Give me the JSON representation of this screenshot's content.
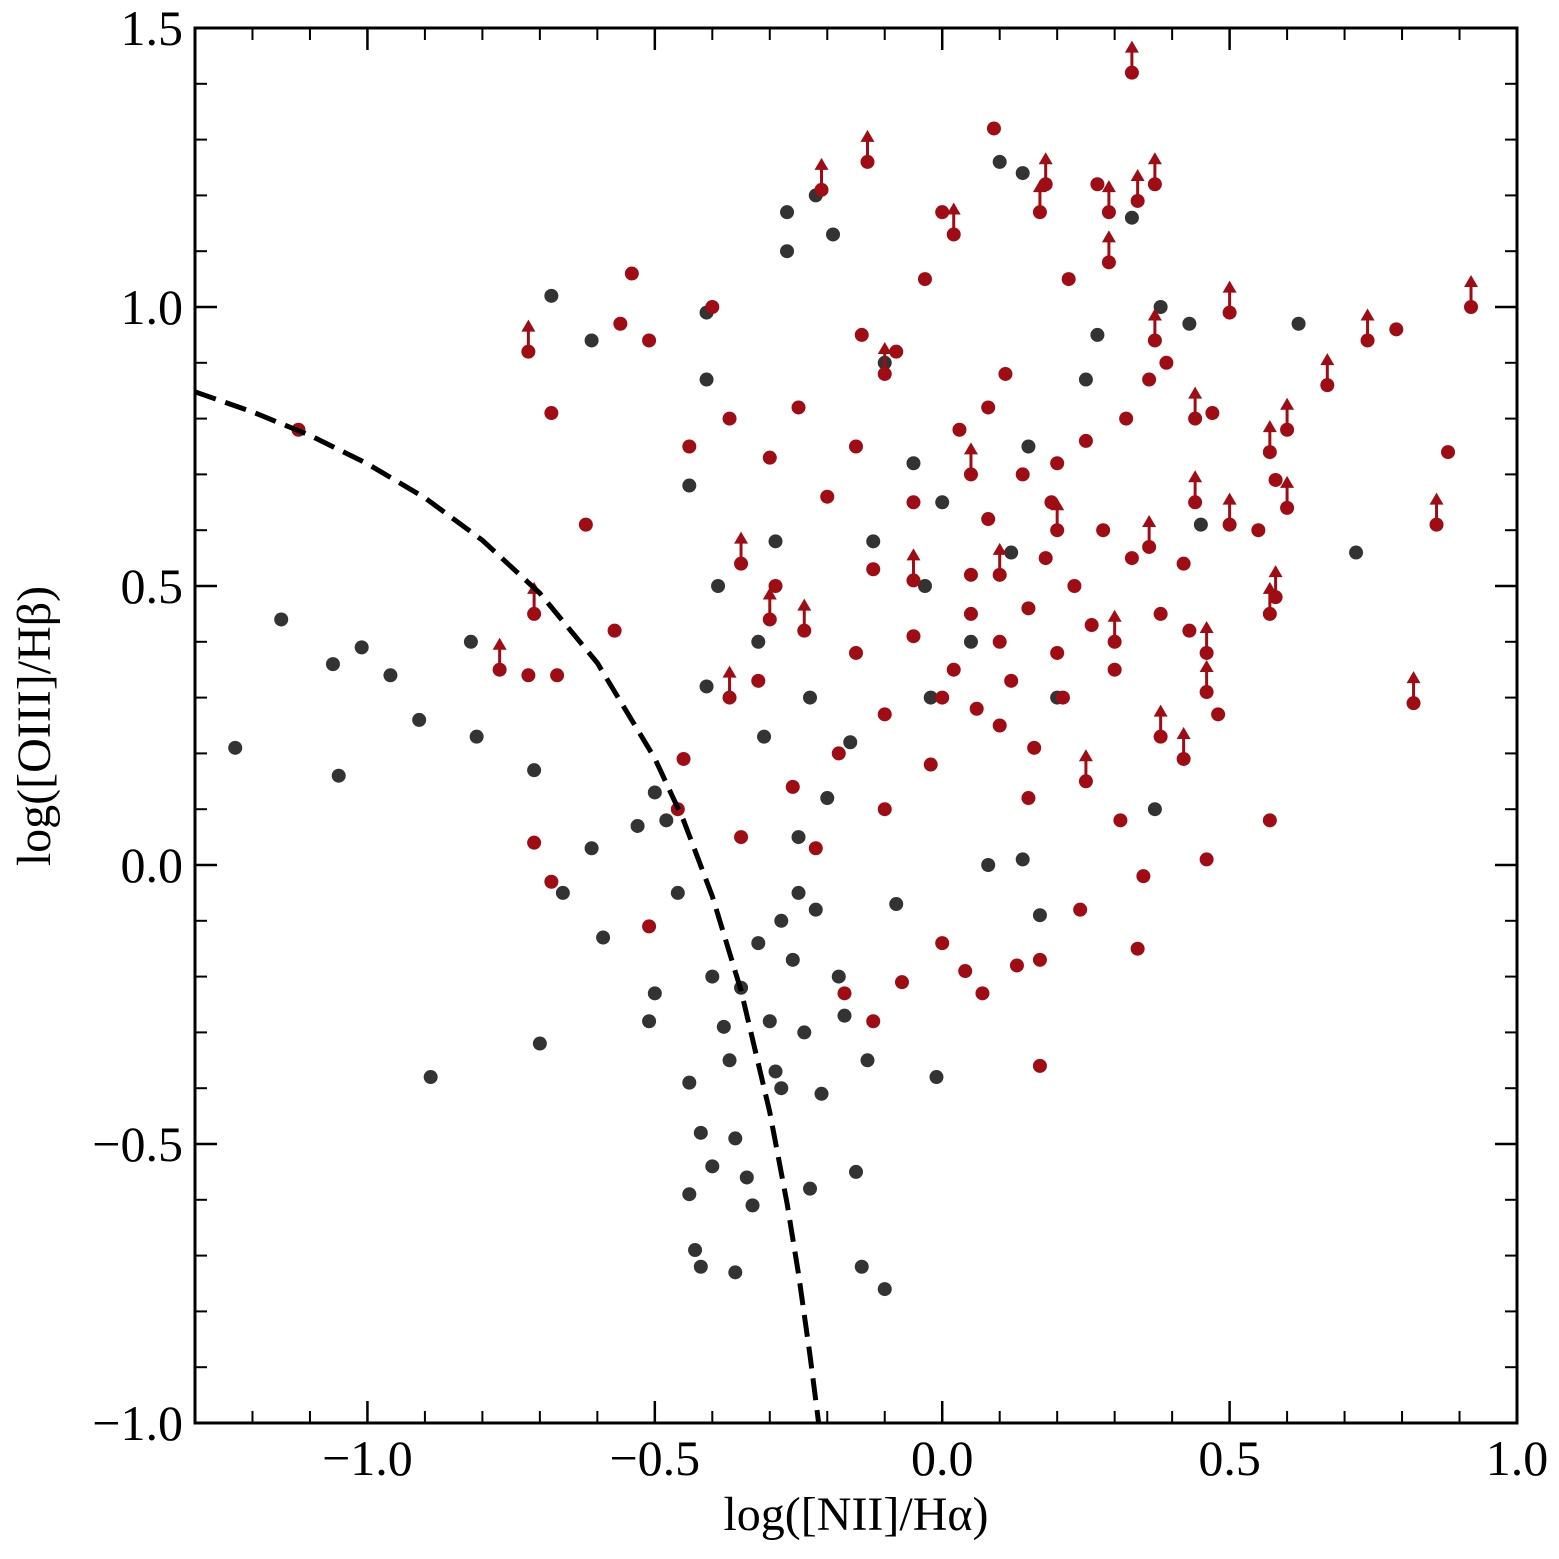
{
  "chart_data": {
    "type": "scatter",
    "x_label": "log([NII]/Hα)",
    "y_label": "log([OIII]/Hβ)",
    "xlim": [
      -1.3,
      1.0
    ],
    "ylim": [
      -1.0,
      1.5
    ],
    "xticks": [
      {
        "value": -1.0,
        "label": "−1.0"
      },
      {
        "value": -0.5,
        "label": "−0.5"
      },
      {
        "value": 0.0,
        "label": "0.0"
      },
      {
        "value": 0.5,
        "label": "0.5"
      },
      {
        "value": 1.0,
        "label": "1.0"
      }
    ],
    "yticks": [
      {
        "value": -1.0,
        "label": "−1.0"
      },
      {
        "value": -0.5,
        "label": "−0.5"
      },
      {
        "value": 0.0,
        "label": "0.0"
      },
      {
        "value": 0.5,
        "label": "0.5"
      },
      {
        "value": 1.0,
        "label": "1.0"
      },
      {
        "value": 1.5,
        "label": "1.5"
      }
    ],
    "xminorticks": [
      -1.2,
      -1.1,
      -0.9,
      -0.8,
      -0.7,
      -0.6,
      -0.4,
      -0.3,
      -0.2,
      -0.1,
      0.1,
      0.2,
      0.3,
      0.4,
      0.6,
      0.7,
      0.8,
      0.9
    ],
    "yminorticks": [
      -0.9,
      -0.8,
      -0.7,
      -0.6,
      -0.4,
      -0.3,
      -0.2,
      -0.1,
      0.1,
      0.2,
      0.3,
      0.4,
      0.6,
      0.7,
      0.8,
      0.9,
      1.1,
      1.2,
      1.3,
      1.4
    ],
    "series": [
      {
        "color": "#333333",
        "marker": "circle",
        "x": [
          -1.23,
          -1.15,
          -1.06,
          -1.01,
          -0.96,
          -0.91,
          -1.05,
          -0.89,
          -0.82,
          -0.81,
          -0.71,
          -0.7,
          -0.68,
          -0.61,
          -0.61,
          -0.59,
          -0.66,
          -0.53,
          -0.51,
          -0.5,
          -0.5,
          -0.48,
          -0.46,
          -0.44,
          -0.44,
          -0.44,
          -0.43,
          -0.42,
          -0.42,
          -0.41,
          -0.41,
          -0.41,
          -0.4,
          -0.4,
          -0.39,
          -0.38,
          -0.37,
          -0.36,
          -0.36,
          -0.35,
          -0.34,
          -0.33,
          -0.32,
          -0.32,
          -0.31,
          -0.3,
          -0.29,
          -0.29,
          -0.28,
          -0.28,
          -0.27,
          -0.27,
          -0.26,
          -0.25,
          -0.25,
          -0.24,
          -0.23,
          -0.23,
          -0.22,
          -0.22,
          -0.21,
          -0.2,
          -0.19,
          -0.18,
          -0.17,
          -0.16,
          -0.15,
          -0.14,
          -0.13,
          -0.12,
          -0.1,
          -0.1,
          -0.08,
          -0.05,
          -0.03,
          -0.01,
          0.0,
          0.05,
          0.08,
          0.1,
          0.14,
          0.14,
          0.17,
          0.2,
          0.25,
          0.27,
          0.33,
          0.37,
          0.38,
          0.43,
          0.45,
          0.62,
          0.72,
          0.12,
          -0.02,
          0.15
        ],
        "values": [
          0.21,
          0.44,
          0.36,
          0.39,
          0.34,
          0.26,
          0.16,
          -0.38,
          0.4,
          0.23,
          0.17,
          -0.32,
          1.02,
          0.94,
          0.03,
          -0.13,
          -0.05,
          0.07,
          -0.28,
          -0.23,
          0.13,
          0.08,
          -0.05,
          0.68,
          -0.39,
          -0.59,
          -0.69,
          -0.72,
          -0.48,
          0.32,
          0.87,
          0.99,
          -0.54,
          -0.2,
          0.5,
          -0.29,
          -0.35,
          -0.49,
          -0.73,
          -0.22,
          -0.56,
          -0.61,
          0.4,
          -0.14,
          0.23,
          -0.28,
          -0.37,
          0.58,
          -0.4,
          -0.1,
          1.17,
          1.1,
          -0.17,
          0.05,
          -0.05,
          -0.3,
          -0.58,
          0.3,
          1.2,
          -0.08,
          -0.41,
          0.12,
          1.13,
          -0.2,
          -0.27,
          0.22,
          -0.55,
          -0.72,
          -0.35,
          0.58,
          -0.76,
          0.9,
          -0.07,
          0.72,
          0.5,
          -0.38,
          0.65,
          0.4,
          0.0,
          1.26,
          1.24,
          0.01,
          -0.09,
          0.3,
          0.87,
          0.95,
          1.16,
          0.1,
          1.0,
          0.97,
          0.61,
          0.97,
          0.56,
          0.56,
          0.3,
          0.75
        ]
      },
      {
        "color": "#a00c14",
        "marker": "circle",
        "x": [
          -1.12,
          -0.72,
          -0.71,
          -0.68,
          -0.68,
          -0.67,
          -0.62,
          -0.57,
          -0.56,
          -0.54,
          -0.51,
          -0.51,
          -0.45,
          -0.46,
          -0.44,
          -0.4,
          -0.37,
          -0.35,
          -0.32,
          -0.3,
          -0.29,
          -0.26,
          -0.25,
          -0.22,
          -0.2,
          -0.18,
          -0.17,
          -0.15,
          -0.14,
          -0.12,
          -0.12,
          -0.1,
          -0.08,
          -0.07,
          -0.05,
          -0.03,
          -0.02,
          0.0,
          0.0,
          0.02,
          0.03,
          0.04,
          0.05,
          0.06,
          0.07,
          0.08,
          0.09,
          0.1,
          0.11,
          0.12,
          0.13,
          0.14,
          0.15,
          0.16,
          0.17,
          0.17,
          0.18,
          0.19,
          0.2,
          0.21,
          0.22,
          0.23,
          0.24,
          0.25,
          0.26,
          0.27,
          0.28,
          0.3,
          0.31,
          0.32,
          0.33,
          0.34,
          0.35,
          0.36,
          0.38,
          0.39,
          0.42,
          0.43,
          0.46,
          0.48,
          0.47,
          0.55,
          0.57,
          0.58,
          0.79,
          0.88,
          0.05,
          0.1,
          -0.05,
          0.0,
          0.15,
          -0.1,
          0.2,
          0.08,
          -0.15
        ],
        "values": [
          0.78,
          0.34,
          0.04,
          0.81,
          -0.03,
          0.34,
          0.61,
          0.42,
          0.97,
          1.06,
          0.94,
          -0.11,
          0.19,
          0.1,
          0.75,
          1.0,
          0.8,
          0.05,
          0.33,
          0.73,
          0.5,
          0.14,
          0.82,
          0.03,
          0.66,
          0.2,
          -0.23,
          0.38,
          0.95,
          0.53,
          -0.28,
          0.27,
          0.92,
          -0.21,
          0.41,
          1.05,
          0.18,
          1.17,
          -0.14,
          0.35,
          0.78,
          -0.19,
          0.52,
          0.28,
          -0.23,
          0.62,
          1.32,
          0.4,
          0.88,
          0.33,
          -0.18,
          0.7,
          0.46,
          0.21,
          -0.36,
          -0.17,
          0.55,
          0.65,
          0.38,
          0.3,
          1.05,
          0.5,
          -0.08,
          0.76,
          0.43,
          1.22,
          0.6,
          0.35,
          0.08,
          0.8,
          0.55,
          -0.15,
          -0.02,
          0.87,
          0.45,
          0.9,
          0.54,
          0.42,
          0.01,
          0.27,
          0.81,
          0.6,
          0.08,
          0.69,
          0.96,
          0.74,
          0.45,
          0.25,
          0.65,
          0.3,
          0.12,
          0.1,
          0.72,
          0.82,
          0.75
        ]
      },
      {
        "color": "#a00c14",
        "marker": "lower-limit",
        "x": [
          -0.72,
          -0.71,
          -0.77,
          -0.37,
          -0.35,
          -0.3,
          -0.24,
          -0.21,
          -0.13,
          -0.05,
          0.02,
          0.17,
          0.18,
          0.29,
          0.29,
          0.33,
          0.34,
          0.37,
          0.37,
          0.36,
          0.38,
          0.42,
          0.44,
          0.44,
          0.46,
          0.46,
          0.5,
          0.5,
          0.57,
          0.57,
          0.58,
          0.6,
          0.6,
          0.67,
          0.74,
          0.82,
          0.86,
          0.92,
          0.25,
          0.1,
          0.05,
          -0.1,
          0.3,
          0.2
        ],
        "values": [
          0.92,
          0.45,
          0.35,
          0.3,
          0.54,
          0.44,
          0.42,
          1.21,
          1.26,
          0.51,
          1.13,
          1.17,
          1.22,
          1.17,
          1.08,
          1.42,
          1.19,
          1.22,
          0.94,
          0.57,
          0.23,
          0.19,
          0.65,
          0.8,
          0.38,
          0.31,
          0.99,
          0.61,
          0.45,
          0.74,
          0.48,
          0.64,
          0.78,
          0.86,
          0.94,
          0.29,
          0.61,
          1.0,
          0.15,
          0.52,
          0.7,
          0.88,
          0.4,
          0.6
        ]
      },
      {
        "color": "#000000",
        "marker": "dashed-line",
        "x": [
          -1.3,
          -1.2,
          -1.1,
          -1.0,
          -0.9,
          -0.8,
          -0.7,
          -0.6,
          -0.5,
          -0.45,
          -0.4,
          -0.35,
          -0.3,
          -0.27,
          -0.25,
          -0.23,
          -0.215
        ],
        "values": [
          0.848,
          0.812,
          0.77,
          0.719,
          0.658,
          0.582,
          0.487,
          0.362,
          0.191,
          0.08,
          -0.056,
          -0.225,
          -0.443,
          -0.606,
          -0.733,
          -0.879,
          -1.0
        ]
      }
    ]
  }
}
